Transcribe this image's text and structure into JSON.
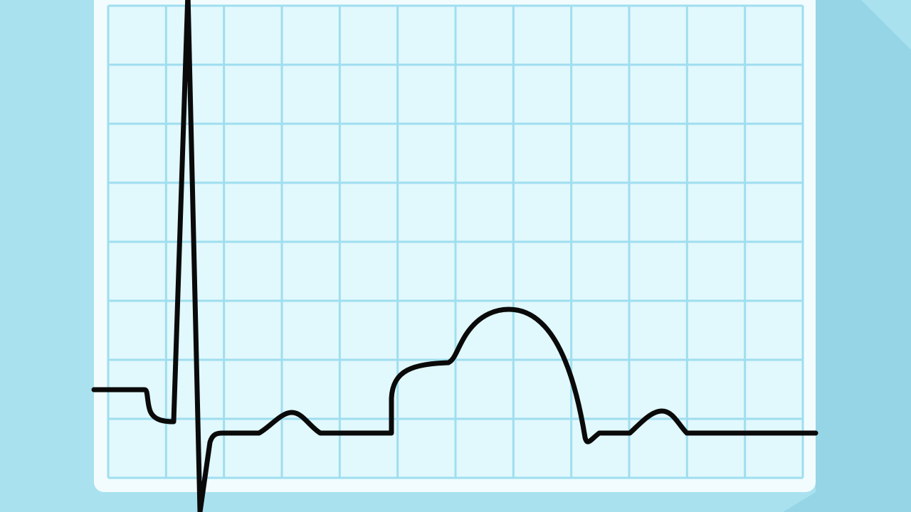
{
  "colors": {
    "background": "#a9e1ef",
    "shadow": "#95d5e6",
    "card_border": "#f2fcfe",
    "grid_fill": "#e1f8fc",
    "grid_line": "#9fdeef",
    "trace": "#0a0a0a"
  },
  "icons": {
    "illustration": "ecg-waveform-icon"
  },
  "grid": {
    "columns": 12,
    "rows": 8
  }
}
